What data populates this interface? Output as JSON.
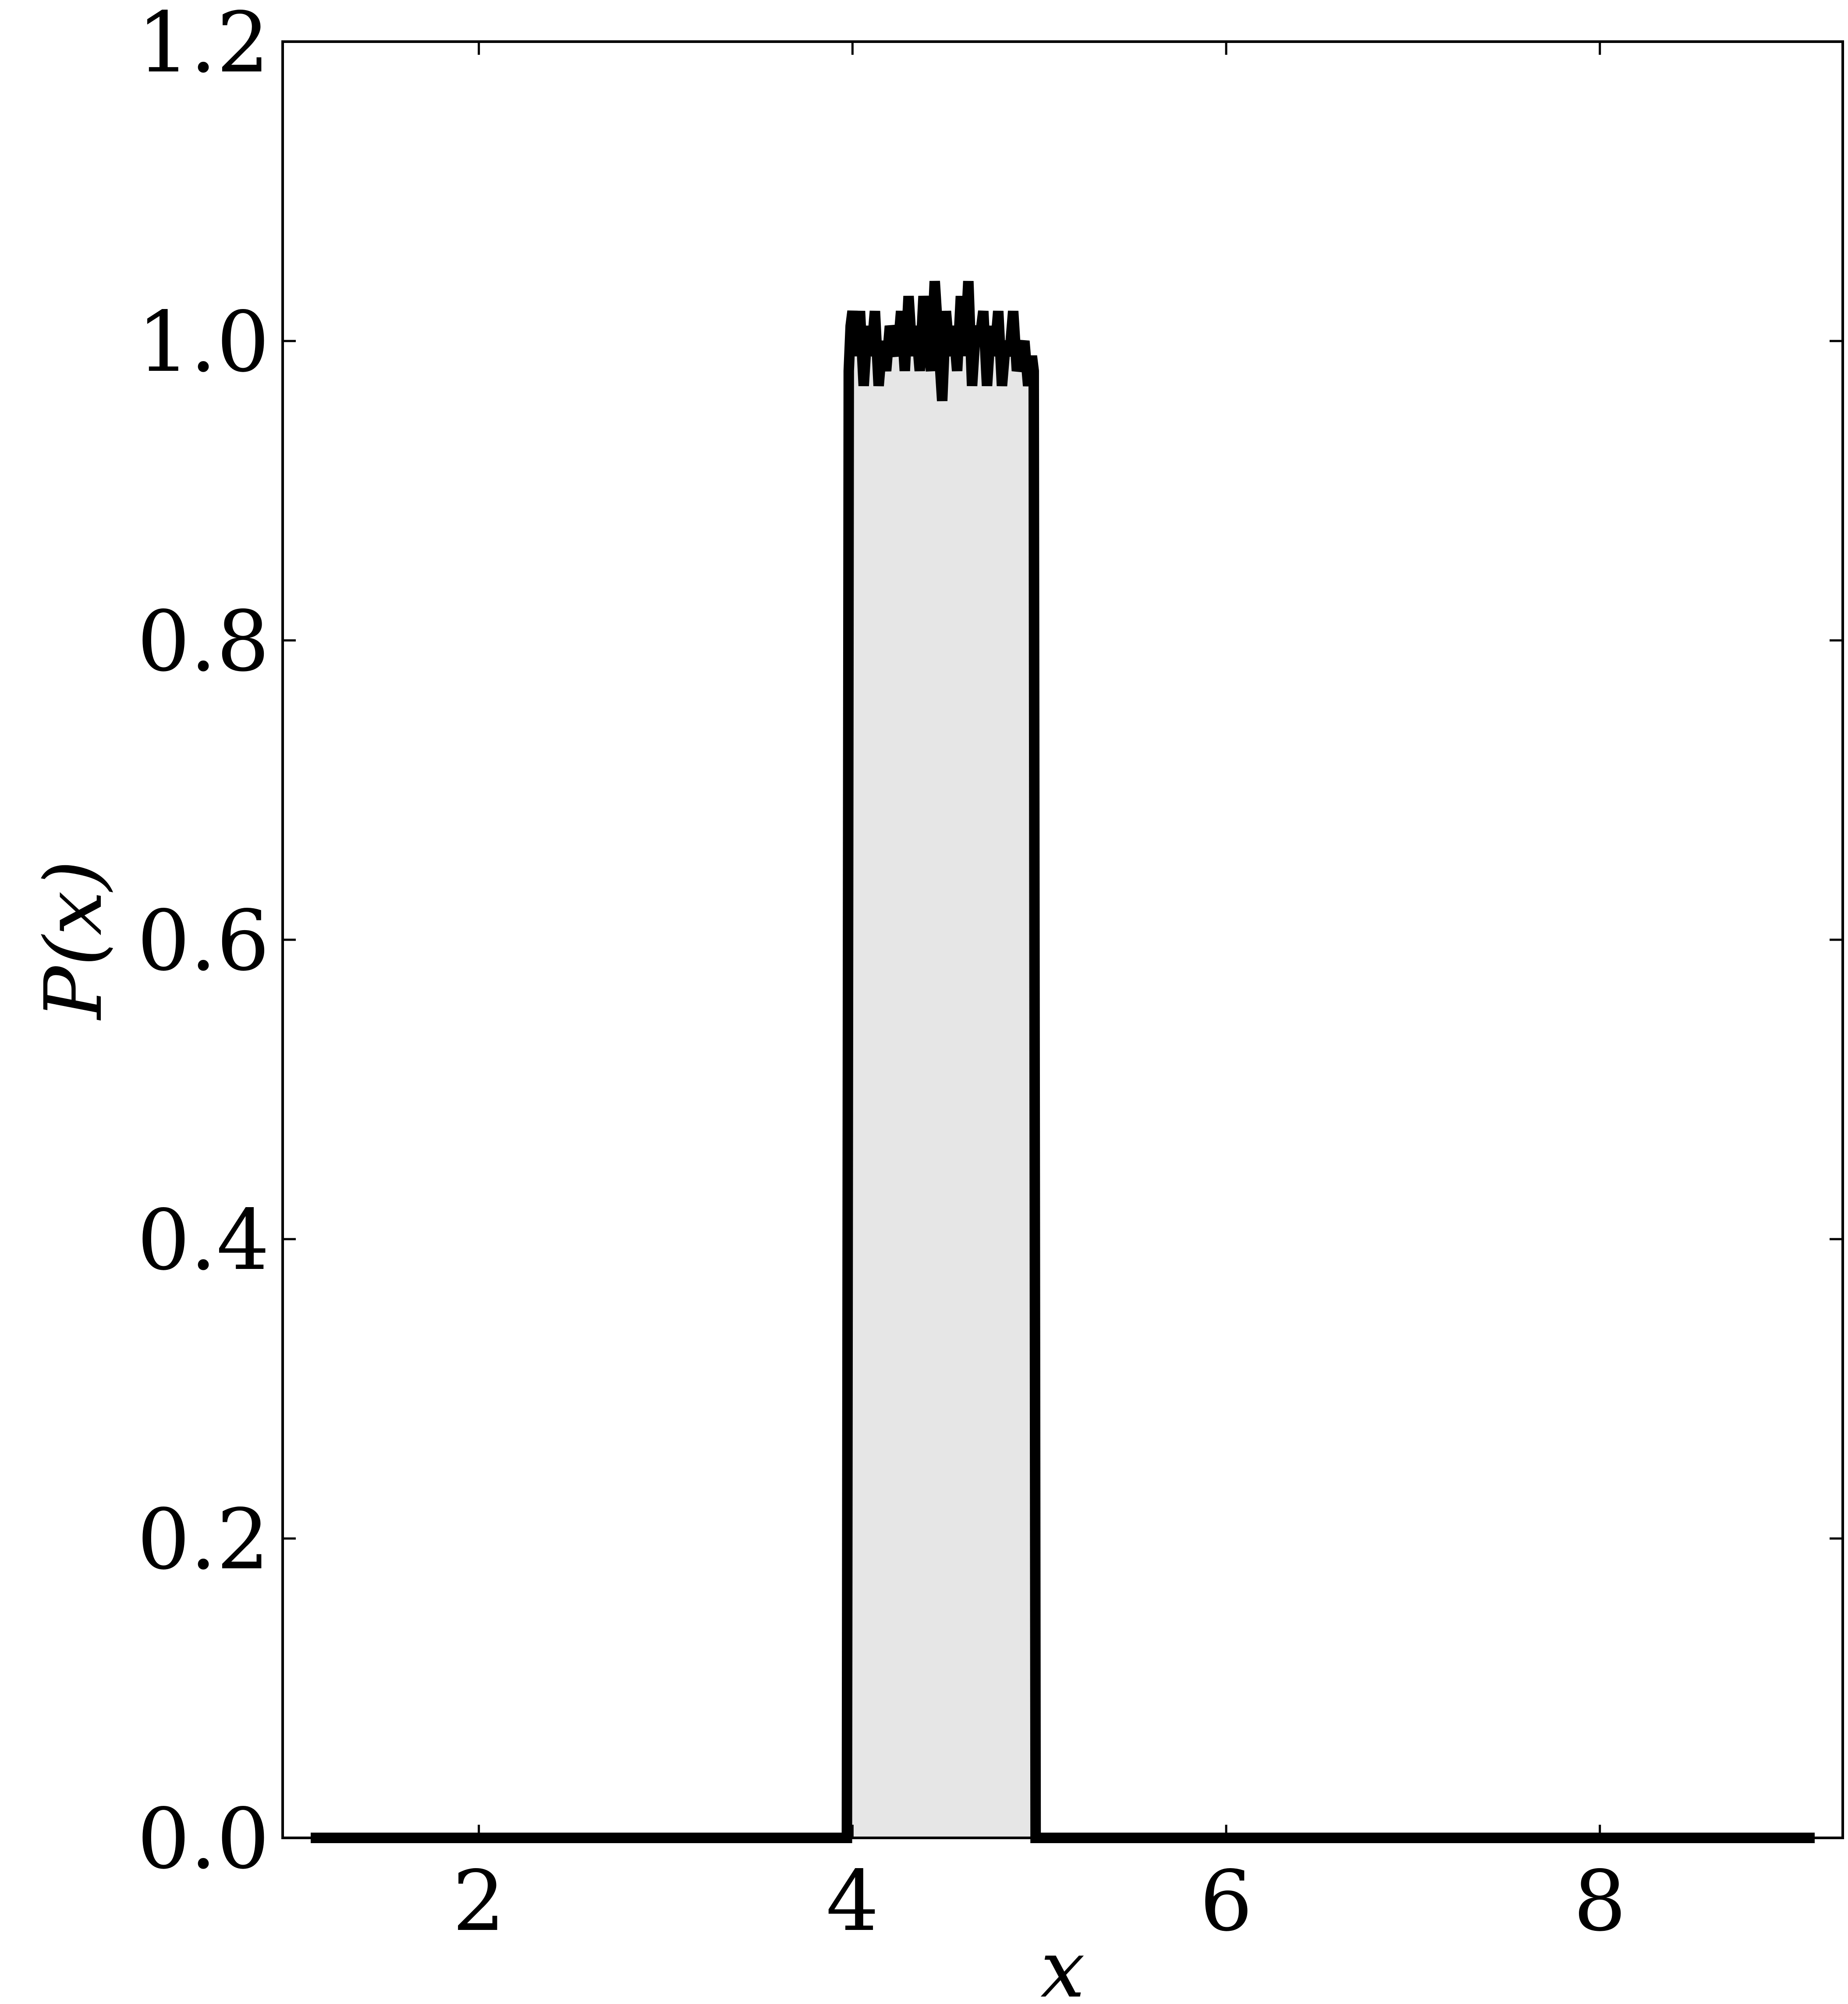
{
  "chart_data": {
    "type": "area",
    "title": "",
    "xlabel": "x",
    "ylabel": "P(x)",
    "xlim": [
      0.95,
      9.3
    ],
    "ylim": [
      0.0,
      1.2
    ],
    "xticks": [
      2,
      4,
      6,
      8
    ],
    "yticks": [
      0.0,
      0.2,
      0.4,
      0.6,
      0.8,
      1.0,
      1.2
    ],
    "xtick_labels": [
      "2",
      "4",
      "6",
      "8"
    ],
    "ytick_labels": [
      "0.0",
      "0.2",
      "0.4",
      "0.6",
      "0.8",
      "1.0",
      "1.2"
    ],
    "grid": false,
    "legend": "none",
    "colors": {
      "line": "#000000",
      "fill": "#e6e6e6",
      "axes": "#000000",
      "background": "#ffffff"
    },
    "series": [
      {
        "x": [
          1.1,
          3.97,
          3.98,
          3.99,
          4.0,
          4.02,
          4.04,
          4.06,
          4.08,
          4.1,
          4.12,
          4.14,
          4.16,
          4.18,
          4.2,
          4.22,
          4.24,
          4.26,
          4.28,
          4.3,
          4.32,
          4.34,
          4.36,
          4.38,
          4.4,
          4.42,
          4.44,
          4.46,
          4.48,
          4.5,
          4.52,
          4.54,
          4.56,
          4.58,
          4.6,
          4.62,
          4.64,
          4.66,
          4.68,
          4.7,
          4.72,
          4.74,
          4.76,
          4.78,
          4.8,
          4.82,
          4.84,
          4.86,
          4.88,
          4.9,
          4.92,
          4.94,
          4.96,
          4.97,
          4.98,
          4.99,
          9.15
        ],
        "y": [
          0.0,
          0.0,
          0.98,
          1.01,
          1.02,
          0.99,
          1.02,
          0.97,
          1.01,
          0.99,
          1.02,
          0.97,
          1.0,
          0.98,
          1.01,
          1.0,
          0.99,
          1.02,
          0.98,
          1.03,
          0.99,
          1.01,
          0.98,
          1.03,
          1.0,
          0.98,
          1.04,
          1.0,
          0.96,
          1.02,
          0.99,
          1.01,
          0.98,
          1.03,
          0.99,
          1.04,
          0.97,
          1.01,
          1.0,
          1.02,
          0.97,
          1.01,
          0.99,
          1.02,
          0.97,
          1.0,
          0.99,
          1.02,
          0.98,
          0.99,
          1.0,
          0.97,
          0.99,
          0.98,
          0.0,
          0.0,
          0.0
        ]
      }
    ]
  }
}
